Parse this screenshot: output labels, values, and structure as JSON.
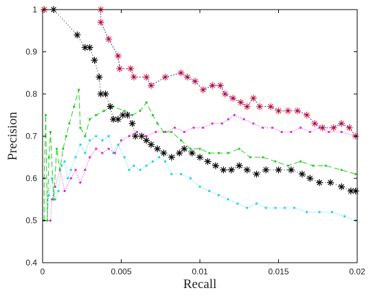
{
  "chart_data": {
    "type": "line",
    "title": "",
    "xlabel": "Recall",
    "ylabel": "Precision",
    "xlim": [
      0,
      0.02
    ],
    "ylim": [
      0.4,
      1
    ],
    "xticks": [
      0,
      0.005,
      0.01,
      0.015,
      0.02
    ],
    "xtick_labels": [
      "0",
      "0.005",
      "0.01",
      "0.015",
      "0.02"
    ],
    "yticks": [
      0.4,
      0.5,
      0.6,
      0.7,
      0.8,
      0.9,
      1
    ],
    "ytick_labels": [
      "0.4",
      "0.5",
      "0.6",
      "0.7",
      "0.8",
      "0.9",
      "1"
    ],
    "grid": false,
    "legend": "none",
    "series": [
      {
        "color": "#2b2bd9",
        "marker": "plus-dot",
        "dash": "2,2",
        "marker_color": "#ff2020",
        "points": [
          [
            0.0001,
            1
          ],
          [
            0.0037,
            1
          ],
          [
            0.0037,
            0.97
          ],
          [
            0.0042,
            0.93
          ],
          [
            0.0048,
            0.89
          ],
          [
            0.0049,
            0.86
          ],
          [
            0.0056,
            0.86
          ],
          [
            0.0058,
            0.84
          ],
          [
            0.0066,
            0.84
          ],
          [
            0.0069,
            0.82
          ],
          [
            0.0078,
            0.84
          ],
          [
            0.0088,
            0.85
          ],
          [
            0.0092,
            0.84
          ],
          [
            0.0097,
            0.83
          ],
          [
            0.0102,
            0.81
          ],
          [
            0.0108,
            0.82
          ],
          [
            0.0113,
            0.82
          ],
          [
            0.0116,
            0.8
          ],
          [
            0.0121,
            0.79
          ],
          [
            0.0126,
            0.78
          ],
          [
            0.013,
            0.77
          ],
          [
            0.0134,
            0.79
          ],
          [
            0.0138,
            0.77
          ],
          [
            0.0145,
            0.77
          ],
          [
            0.015,
            0.76
          ],
          [
            0.0156,
            0.76
          ],
          [
            0.0162,
            0.76
          ],
          [
            0.0168,
            0.75
          ],
          [
            0.0173,
            0.73
          ],
          [
            0.0178,
            0.72
          ],
          [
            0.0185,
            0.72
          ],
          [
            0.019,
            0.73
          ],
          [
            0.0195,
            0.72
          ],
          [
            0.0199,
            0.7
          ]
        ]
      },
      {
        "color": "#000000",
        "marker": "asterisk",
        "dash": "1,3",
        "marker_color": "#000000",
        "points": [
          [
            0.0001,
            1
          ],
          [
            0.0007,
            1
          ],
          [
            0.0022,
            0.94
          ],
          [
            0.0027,
            0.91
          ],
          [
            0.003,
            0.91
          ],
          [
            0.0033,
            0.88
          ],
          [
            0.0036,
            0.84
          ],
          [
            0.0037,
            0.8
          ],
          [
            0.004,
            0.8
          ],
          [
            0.0043,
            0.77
          ],
          [
            0.0045,
            0.74
          ],
          [
            0.0048,
            0.74
          ],
          [
            0.0051,
            0.75
          ],
          [
            0.0054,
            0.75
          ],
          [
            0.0057,
            0.73
          ],
          [
            0.0059,
            0.7
          ],
          [
            0.0063,
            0.7
          ],
          [
            0.0066,
            0.69
          ],
          [
            0.0069,
            0.68
          ],
          [
            0.0073,
            0.67
          ],
          [
            0.0077,
            0.66
          ],
          [
            0.0082,
            0.65
          ],
          [
            0.0087,
            0.66
          ],
          [
            0.009,
            0.67
          ],
          [
            0.0095,
            0.66
          ],
          [
            0.01,
            0.65
          ],
          [
            0.0105,
            0.64
          ],
          [
            0.011,
            0.63
          ],
          [
            0.0115,
            0.62
          ],
          [
            0.012,
            0.62
          ],
          [
            0.0125,
            0.63
          ],
          [
            0.013,
            0.62
          ],
          [
            0.0136,
            0.61
          ],
          [
            0.0142,
            0.62
          ],
          [
            0.015,
            0.62
          ],
          [
            0.0158,
            0.62
          ],
          [
            0.0165,
            0.61
          ],
          [
            0.017,
            0.6
          ],
          [
            0.0176,
            0.59
          ],
          [
            0.0183,
            0.59
          ],
          [
            0.019,
            0.58
          ],
          [
            0.0196,
            0.57
          ],
          [
            0.0199,
            0.57
          ]
        ]
      },
      {
        "color": "#22cc22",
        "marker": "dot",
        "dash": "8,4",
        "marker_color": "#22cc22",
        "points": [
          [
            0.0001,
            0.5
          ],
          [
            0.0001,
            0.6
          ],
          [
            0.0002,
            0.75
          ],
          [
            0.0003,
            0.5
          ],
          [
            0.0004,
            0.65
          ],
          [
            0.0005,
            0.71
          ],
          [
            0.0007,
            0.55
          ],
          [
            0.0009,
            0.67
          ],
          [
            0.0011,
            0.62
          ],
          [
            0.0013,
            0.67
          ],
          [
            0.0015,
            0.7
          ],
          [
            0.0017,
            0.73
          ],
          [
            0.002,
            0.77
          ],
          [
            0.0023,
            0.81
          ],
          [
            0.0024,
            0.72
          ],
          [
            0.0027,
            0.7
          ],
          [
            0.003,
            0.74
          ],
          [
            0.0034,
            0.75
          ],
          [
            0.0039,
            0.76
          ],
          [
            0.0045,
            0.77
          ],
          [
            0.0052,
            0.76
          ],
          [
            0.0057,
            0.75
          ],
          [
            0.0062,
            0.76
          ],
          [
            0.0066,
            0.78
          ],
          [
            0.007,
            0.75
          ],
          [
            0.0073,
            0.73
          ],
          [
            0.0077,
            0.71
          ],
          [
            0.0082,
            0.71
          ],
          [
            0.0088,
            0.69
          ],
          [
            0.0094,
            0.67
          ],
          [
            0.01,
            0.67
          ],
          [
            0.0106,
            0.66
          ],
          [
            0.0112,
            0.66
          ],
          [
            0.0118,
            0.66
          ],
          [
            0.0125,
            0.67
          ],
          [
            0.0132,
            0.65
          ],
          [
            0.014,
            0.65
          ],
          [
            0.0148,
            0.64
          ],
          [
            0.0156,
            0.63
          ],
          [
            0.0164,
            0.64
          ],
          [
            0.0172,
            0.63
          ],
          [
            0.018,
            0.63
          ],
          [
            0.019,
            0.62
          ],
          [
            0.0199,
            0.61
          ]
        ]
      },
      {
        "color": "#e020e0",
        "marker": "dot",
        "dash": "1,2",
        "marker_color": "#e020e0",
        "points": [
          [
            0.0001,
            0.5
          ],
          [
            0.0005,
            0.5
          ],
          [
            0.0006,
            0.55
          ],
          [
            0.0008,
            0.58
          ],
          [
            0.0011,
            0.62
          ],
          [
            0.0014,
            0.57
          ],
          [
            0.0018,
            0.6
          ],
          [
            0.0021,
            0.62
          ],
          [
            0.0024,
            0.59
          ],
          [
            0.0027,
            0.62
          ],
          [
            0.003,
            0.65
          ],
          [
            0.0034,
            0.67
          ],
          [
            0.0038,
            0.66
          ],
          [
            0.0042,
            0.67
          ],
          [
            0.0046,
            0.66
          ],
          [
            0.005,
            0.69
          ],
          [
            0.0055,
            0.7
          ],
          [
            0.006,
            0.71
          ],
          [
            0.0066,
            0.7
          ],
          [
            0.0072,
            0.71
          ],
          [
            0.0078,
            0.71
          ],
          [
            0.0084,
            0.72
          ],
          [
            0.009,
            0.71
          ],
          [
            0.0096,
            0.72
          ],
          [
            0.0102,
            0.72
          ],
          [
            0.0108,
            0.73
          ],
          [
            0.0114,
            0.73
          ],
          [
            0.0118,
            0.74
          ],
          [
            0.0122,
            0.75
          ],
          [
            0.0128,
            0.74
          ],
          [
            0.0134,
            0.73
          ],
          [
            0.014,
            0.72
          ],
          [
            0.0146,
            0.72
          ],
          [
            0.0152,
            0.71
          ],
          [
            0.0158,
            0.71
          ],
          [
            0.0164,
            0.72
          ],
          [
            0.017,
            0.71
          ],
          [
            0.0176,
            0.72
          ],
          [
            0.0182,
            0.71
          ],
          [
            0.019,
            0.71
          ],
          [
            0.0199,
            0.7
          ]
        ]
      },
      {
        "color": "#20d0e0",
        "marker": "dot",
        "dash": "1,2",
        "marker_color": "#20d0e0",
        "points": [
          [
            0.0001,
            0.5
          ],
          [
            0.0003,
            0.5
          ],
          [
            0.0004,
            0.56
          ],
          [
            0.0006,
            0.6
          ],
          [
            0.0008,
            0.55
          ],
          [
            0.001,
            0.57
          ],
          [
            0.0012,
            0.63
          ],
          [
            0.0014,
            0.64
          ],
          [
            0.0016,
            0.6
          ],
          [
            0.0018,
            0.62
          ],
          [
            0.0021,
            0.65
          ],
          [
            0.0024,
            0.68
          ],
          [
            0.0027,
            0.66
          ],
          [
            0.003,
            0.69
          ],
          [
            0.0034,
            0.7
          ],
          [
            0.0038,
            0.69
          ],
          [
            0.0042,
            0.7
          ],
          [
            0.0045,
            0.66
          ],
          [
            0.0048,
            0.68
          ],
          [
            0.0052,
            0.65
          ],
          [
            0.0055,
            0.62
          ],
          [
            0.0058,
            0.63
          ],
          [
            0.0062,
            0.62
          ],
          [
            0.0066,
            0.63
          ],
          [
            0.007,
            0.64
          ],
          [
            0.0074,
            0.65
          ],
          [
            0.0078,
            0.64
          ],
          [
            0.0082,
            0.61
          ],
          [
            0.0088,
            0.61
          ],
          [
            0.0094,
            0.6
          ],
          [
            0.01,
            0.58
          ],
          [
            0.0106,
            0.57
          ],
          [
            0.0112,
            0.56
          ],
          [
            0.0118,
            0.55
          ],
          [
            0.0124,
            0.54
          ],
          [
            0.013,
            0.53
          ],
          [
            0.0136,
            0.54
          ],
          [
            0.0142,
            0.53
          ],
          [
            0.0148,
            0.53
          ],
          [
            0.0154,
            0.53
          ],
          [
            0.016,
            0.53
          ],
          [
            0.0168,
            0.52
          ],
          [
            0.0176,
            0.52
          ],
          [
            0.0184,
            0.52
          ],
          [
            0.0192,
            0.51
          ],
          [
            0.0199,
            0.5
          ]
        ]
      }
    ]
  }
}
